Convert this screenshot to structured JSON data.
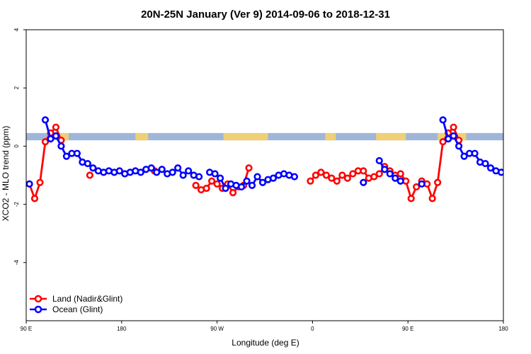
{
  "chart_data": {
    "type": "line",
    "title": "20N-25N January (Ver 9)   2014-09-06 to 2018-12-31",
    "xlabel": "Longitude (deg E)",
    "ylabel": "XCO2 - MLO trend (ppm)",
    "xlim": [
      90,
      540
    ],
    "ylim": [
      -6,
      4
    ],
    "x_ticks": [
      {
        "value": 90,
        "label": "90 E"
      },
      {
        "value": 180,
        "label": "180"
      },
      {
        "value": 270,
        "label": "90 W"
      },
      {
        "value": 360,
        "label": "0"
      },
      {
        "value": 450,
        "label": "90 E"
      },
      {
        "value": 540,
        "label": "180"
      }
    ],
    "y_ticks": [
      {
        "value": -4,
        "label": "-4"
      },
      {
        "value": -2,
        "label": "-2"
      },
      {
        "value": 0,
        "label": "0"
      },
      {
        "value": 2,
        "label": "2"
      },
      {
        "value": 4,
        "label": "4"
      }
    ],
    "legend_position": "bottom-left",
    "series": [
      {
        "name": "Land (Nadir&Glint)",
        "color": "#ff0000",
        "segments": [
          [
            [
              93,
              -1.3
            ],
            [
              98,
              -1.8
            ],
            [
              103,
              -1.25
            ],
            [
              108,
              0.15
            ],
            [
              113,
              0.45
            ],
            [
              118,
              0.65
            ],
            [
              123,
              0.2
            ]
          ],
          [
            [
              150,
              -1.0
            ]
          ],
          [
            [
              183,
              -0.95
            ]
          ],
          [
            [
              211,
              -0.85
            ]
          ],
          [
            [
              250,
              -1.35
            ],
            [
              255,
              -1.5
            ],
            [
              260,
              -1.45
            ],
            [
              265,
              -1.2
            ],
            [
              270,
              -1.3
            ],
            [
              275,
              -1.45
            ],
            [
              280,
              -1.3
            ],
            [
              285,
              -1.6
            ],
            [
              290,
              -1.4
            ],
            [
              295,
              -1.35
            ],
            [
              300,
              -0.75
            ]
          ],
          [
            [
              358,
              -1.2
            ],
            [
              363,
              -1.0
            ],
            [
              368,
              -0.9
            ],
            [
              373,
              -1.0
            ],
            [
              378,
              -1.1
            ],
            [
              383,
              -1.2
            ],
            [
              388,
              -1.0
            ],
            [
              393,
              -1.1
            ],
            [
              398,
              -0.95
            ],
            [
              403,
              -0.85
            ],
            [
              408,
              -0.85
            ],
            [
              413,
              -1.1
            ],
            [
              418,
              -1.05
            ],
            [
              423,
              -0.95
            ],
            [
              428,
              -0.7
            ],
            [
              433,
              -0.85
            ],
            [
              438,
              -1.0
            ],
            [
              443,
              -0.95
            ],
            [
              448,
              -1.2
            ],
            [
              453,
              -1.8
            ],
            [
              458,
              -1.4
            ],
            [
              463,
              -1.2
            ],
            [
              468,
              -1.3
            ],
            [
              473,
              -1.8
            ],
            [
              478,
              -1.25
            ],
            [
              483,
              0.15
            ],
            [
              488,
              0.45
            ],
            [
              493,
              0.65
            ],
            [
              498,
              0.2
            ]
          ]
        ]
      },
      {
        "name": "Ocean (Glint)",
        "color": "#0000ff",
        "segments": [
          [
            [
              93,
              -1.3
            ]
          ],
          [
            [
              108,
              0.9
            ],
            [
              113,
              0.25
            ],
            [
              118,
              0.35
            ],
            [
              123,
              0.0
            ],
            [
              128,
              -0.35
            ],
            [
              133,
              -0.25
            ],
            [
              138,
              -0.25
            ],
            [
              143,
              -0.55
            ],
            [
              148,
              -0.6
            ],
            [
              153,
              -0.75
            ],
            [
              158,
              -0.85
            ],
            [
              163,
              -0.9
            ],
            [
              168,
              -0.85
            ],
            [
              173,
              -0.9
            ],
            [
              178,
              -0.85
            ],
            [
              183,
              -0.95
            ],
            [
              188,
              -0.9
            ],
            [
              193,
              -0.85
            ],
            [
              198,
              -0.9
            ],
            [
              203,
              -0.8
            ],
            [
              208,
              -0.75
            ],
            [
              213,
              -0.9
            ],
            [
              218,
              -0.8
            ],
            [
              223,
              -0.95
            ],
            [
              228,
              -0.9
            ],
            [
              233,
              -0.75
            ],
            [
              238,
              -1.0
            ],
            [
              243,
              -0.85
            ],
            [
              248,
              -1.0
            ],
            [
              253,
              -1.05
            ]
          ],
          [
            [
              263,
              -0.9
            ],
            [
              268,
              -0.95
            ],
            [
              273,
              -1.1
            ],
            [
              278,
              -1.45
            ],
            [
              283,
              -1.3
            ],
            [
              288,
              -1.35
            ],
            [
              293,
              -1.4
            ],
            [
              298,
              -1.2
            ],
            [
              303,
              -1.35
            ],
            [
              308,
              -1.05
            ],
            [
              313,
              -1.25
            ],
            [
              318,
              -1.15
            ],
            [
              323,
              -1.1
            ],
            [
              328,
              -1.0
            ],
            [
              333,
              -0.95
            ],
            [
              338,
              -1.0
            ],
            [
              343,
              -1.05
            ]
          ],
          [
            [
              408,
              -1.25
            ]
          ],
          [
            [
              423,
              -0.5
            ],
            [
              428,
              -0.8
            ],
            [
              433,
              -0.95
            ],
            [
              438,
              -1.1
            ],
            [
              443,
              -1.2
            ]
          ],
          [
            [
              463,
              -1.3
            ]
          ],
          [
            [
              483,
              0.9
            ],
            [
              488,
              0.25
            ],
            [
              493,
              0.35
            ],
            [
              498,
              0.0
            ],
            [
              503,
              -0.35
            ],
            [
              508,
              -0.25
            ],
            [
              513,
              -0.25
            ],
            [
              518,
              -0.55
            ],
            [
              523,
              -0.6
            ],
            [
              528,
              -0.75
            ],
            [
              533,
              -0.85
            ],
            [
              538,
              -0.9
            ],
            [
              543,
              -0.85
            ],
            [
              548,
              -0.9
            ],
            [
              553,
              -0.85
            ],
            [
              558,
              -0.95
            ],
            [
              563,
              -0.9
            ],
            [
              568,
              -0.85
            ],
            [
              573,
              -0.9
            ],
            [
              578,
              -0.8
            ]
          ]
        ]
      }
    ],
    "land_mask_band": {
      "ocean_color": "#9fb6d8",
      "land_color": "#f7d36b",
      "ymin": 0.2,
      "ymax": 0.45
    }
  }
}
